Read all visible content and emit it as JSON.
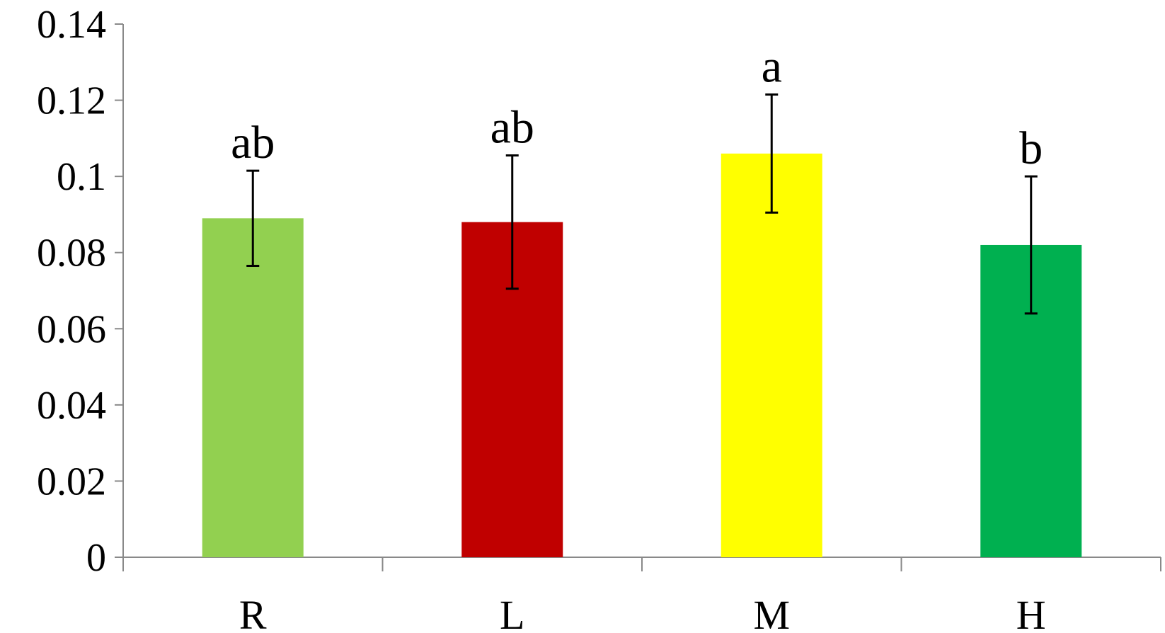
{
  "chart_data": {
    "type": "bar",
    "title": "",
    "xlabel": "",
    "ylabel": "",
    "categories": [
      "R",
      "L",
      "M",
      "H"
    ],
    "values": [
      0.089,
      0.088,
      0.106,
      0.082
    ],
    "error": [
      0.0125,
      0.0175,
      0.0155,
      0.018
    ],
    "significance_labels": [
      "ab",
      "ab",
      "a",
      "b"
    ],
    "bar_colors": [
      "#92d050",
      "#c00000",
      "#ffff00",
      "#00b050"
    ],
    "ylim": [
      0,
      0.14
    ],
    "yticks": [
      0,
      0.02,
      0.04,
      0.06,
      0.08,
      0.1,
      0.12,
      0.14
    ],
    "ytick_labels": [
      "0",
      "0.02",
      "0.04",
      "0.06",
      "0.08",
      "0.1",
      "0.12",
      "0.14"
    ],
    "grid": false,
    "legend": "none"
  }
}
